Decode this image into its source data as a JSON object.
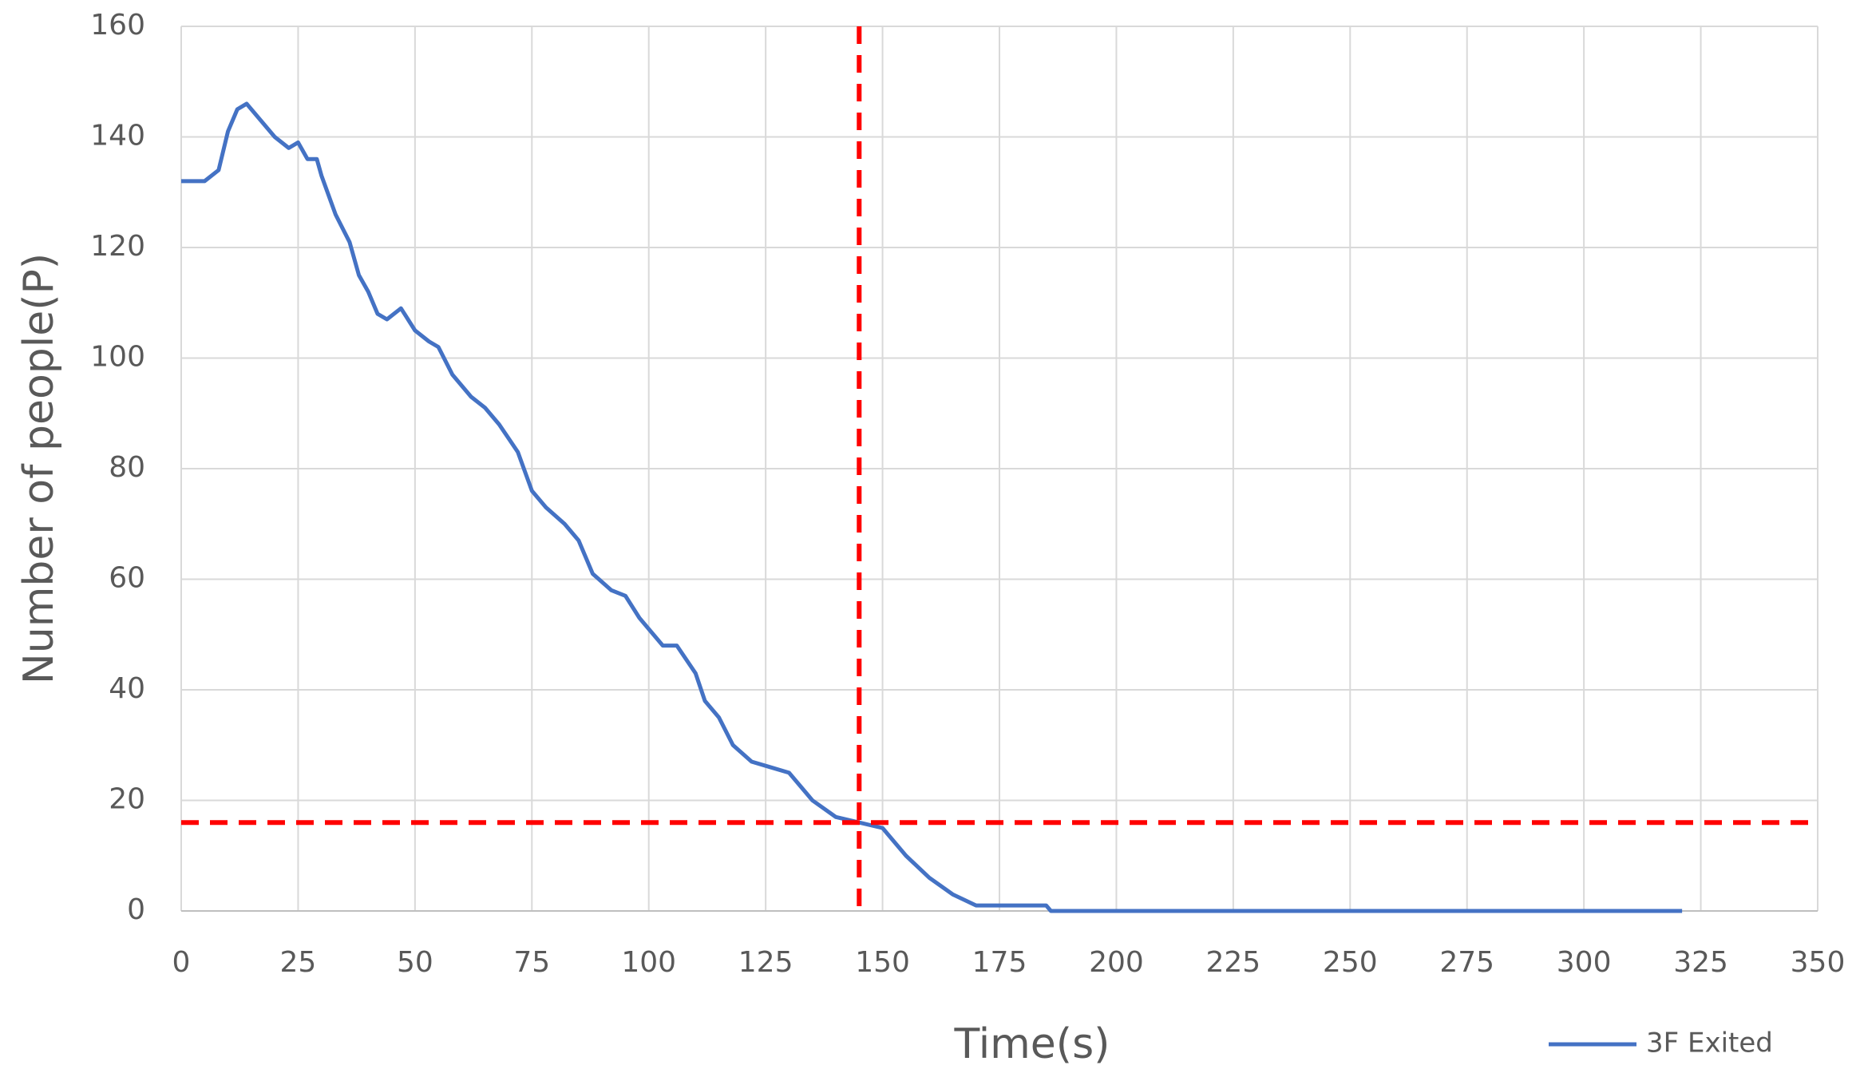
{
  "chart_data": {
    "type": "line",
    "xlabel": "Time(s)",
    "ylabel": "Number of people(P)",
    "x": [
      0,
      5,
      8,
      10,
      12,
      14,
      17,
      20,
      23,
      25,
      27,
      29,
      30,
      33,
      36,
      38,
      40,
      42,
      44,
      47,
      50,
      53,
      55,
      58,
      62,
      65,
      68,
      72,
      75,
      78,
      82,
      85,
      88,
      92,
      95,
      98,
      100,
      103,
      106,
      110,
      112,
      115,
      118,
      122,
      126,
      130,
      135,
      140,
      145,
      150,
      155,
      160,
      165,
      170,
      175,
      185,
      186,
      200,
      250,
      300,
      321
    ],
    "series": [
      {
        "name": "3F Exited",
        "color": "#4472c4",
        "values": [
          132,
          132,
          134,
          141,
          145,
          146,
          143,
          140,
          138,
          139,
          136,
          136,
          133,
          126,
          121,
          115,
          112,
          108,
          107,
          109,
          105,
          103,
          102,
          97,
          93,
          91,
          88,
          83,
          76,
          73,
          70,
          67,
          61,
          58,
          57,
          53,
          51,
          48,
          48,
          43,
          38,
          35,
          30,
          27,
          26,
          25,
          20,
          17,
          16,
          15,
          10,
          6,
          3,
          1,
          1,
          1,
          0,
          0,
          0,
          0,
          0
        ]
      }
    ],
    "xlim": [
      0,
      350
    ],
    "xticks": [
      0,
      25,
      50,
      75,
      100,
      125,
      150,
      175,
      200,
      225,
      250,
      275,
      300,
      325,
      350
    ],
    "ylim": [
      0,
      160
    ],
    "yticks": [
      0,
      20,
      40,
      60,
      80,
      100,
      120,
      140,
      160
    ],
    "grid": true,
    "legend": "bottom-right",
    "reference_x": 145,
    "reference_y": 16,
    "reference_color": "#ff0000"
  }
}
